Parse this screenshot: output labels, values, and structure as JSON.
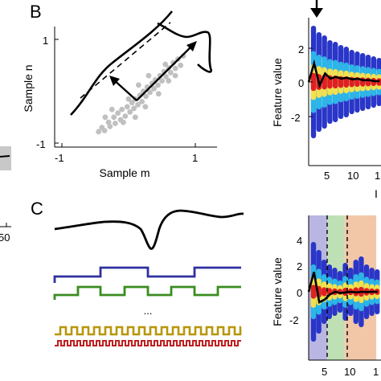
{
  "panels": {
    "B": {
      "letter": "B",
      "xlabel": "Sample m",
      "ylabel": "Sample n",
      "xticks": [
        "-1",
        "1"
      ],
      "yticks": [
        "1",
        "-1"
      ]
    },
    "C": {
      "letter": "C",
      "ellipsis": "..."
    },
    "top_right": {
      "ylabel": "Feature value",
      "yticks": [
        "2",
        "0",
        "-2"
      ],
      "xticks": [
        "5",
        "10",
        "1"
      ],
      "xlabel_partial": "I"
    },
    "bottom_right": {
      "ylabel": "Feature value",
      "yticks": [
        "4",
        "2",
        "0",
        "-2"
      ],
      "xticks": [
        "5",
        "10",
        "1"
      ]
    },
    "left_partial": {
      "tick": "50"
    }
  },
  "colors": {
    "scatter": "#c0c0c0",
    "square_blue": "#3030a0",
    "square_green": "#3a8c20",
    "square_gold": "#b8960a",
    "square_red": "#c02020",
    "region_blue": "#b9b6e2",
    "region_green": "#bfe0b5",
    "region_orange": "#f2c7a8",
    "heat_low": "#2a36c8",
    "heat_high": "#e02020"
  },
  "chart_data": [
    {
      "type": "scatter",
      "title": "",
      "xlabel": "Sample m",
      "ylabel": "Sample n",
      "xlim": [
        -1.1,
        1.2
      ],
      "ylim": [
        -1.05,
        1.3
      ],
      "points": [
        [
          -0.45,
          -0.78
        ],
        [
          -0.4,
          -0.7
        ],
        [
          -0.36,
          -0.76
        ],
        [
          -0.3,
          -0.6
        ],
        [
          -0.28,
          -0.68
        ],
        [
          -0.22,
          -0.5
        ],
        [
          -0.2,
          -0.62
        ],
        [
          -0.16,
          -0.42
        ],
        [
          -0.12,
          -0.55
        ],
        [
          -0.1,
          -0.35
        ],
        [
          -0.05,
          -0.48
        ],
        [
          -0.02,
          -0.3
        ],
        [
          0.02,
          -0.4
        ],
        [
          0.05,
          -0.22
        ],
        [
          0.08,
          -0.33
        ],
        [
          0.1,
          -0.15
        ],
        [
          0.14,
          -0.26
        ],
        [
          0.17,
          -0.08
        ],
        [
          0.2,
          -0.2
        ],
        [
          0.22,
          0.0
        ],
        [
          0.26,
          -0.1
        ],
        [
          0.28,
          0.08
        ],
        [
          0.32,
          -0.02
        ],
        [
          0.35,
          0.15
        ],
        [
          0.38,
          0.05
        ],
        [
          0.4,
          0.22
        ],
        [
          0.44,
          0.12
        ],
        [
          0.47,
          0.3
        ],
        [
          0.5,
          0.2
        ],
        [
          0.53,
          0.38
        ],
        [
          0.56,
          0.28
        ],
        [
          0.6,
          0.45
        ],
        [
          0.63,
          0.36
        ],
        [
          0.67,
          0.55
        ],
        [
          0.7,
          0.44
        ],
        [
          0.74,
          0.62
        ],
        [
          0.78,
          0.5
        ],
        [
          0.82,
          0.68
        ],
        [
          0.3,
          0.3
        ],
        [
          0.0,
          -0.15
        ],
        [
          -0.25,
          -0.35
        ],
        [
          0.45,
          -0.05
        ],
        [
          0.15,
          0.12
        ],
        [
          -0.08,
          -0.6
        ],
        [
          0.6,
          0.2
        ],
        [
          0.25,
          -0.3
        ],
        [
          -0.35,
          -0.5
        ],
        [
          0.55,
          0.52
        ],
        [
          0.7,
          0.3
        ],
        [
          0.1,
          -0.5
        ]
      ]
    },
    {
      "type": "heatmap",
      "ylabel": "Feature value",
      "ylim": [
        -3,
        3.5
      ],
      "x": [
        1,
        2,
        3,
        4,
        5,
        6,
        7,
        8,
        9,
        10,
        11,
        12,
        13,
        14
      ],
      "mean_line": [
        0,
        1.1,
        -0.2,
        0.5,
        0.2,
        0.3,
        0.2,
        0.25,
        0.15,
        0.2,
        0.1,
        0.12,
        0.05,
        0.05
      ]
    },
    {
      "type": "heatmap",
      "ylabel": "Feature value",
      "ylim": [
        -3.5,
        5
      ],
      "x": [
        1,
        2,
        3,
        4,
        5,
        6,
        7,
        8,
        9,
        10,
        11,
        12,
        13,
        14
      ],
      "mean_line": [
        0,
        1.5,
        -0.8,
        -0.6,
        -0.2,
        0.0,
        -0.1,
        -0.05,
        0.0,
        -0.05,
        0.0,
        -0.02,
        0.0,
        0.0
      ],
      "regions": [
        {
          "from": 0.5,
          "to": 4.5,
          "color": "blue"
        },
        {
          "from": 4.5,
          "to": 8.2,
          "color": "green"
        },
        {
          "from": 8.2,
          "to": 15,
          "color": "orange"
        }
      ]
    }
  ]
}
